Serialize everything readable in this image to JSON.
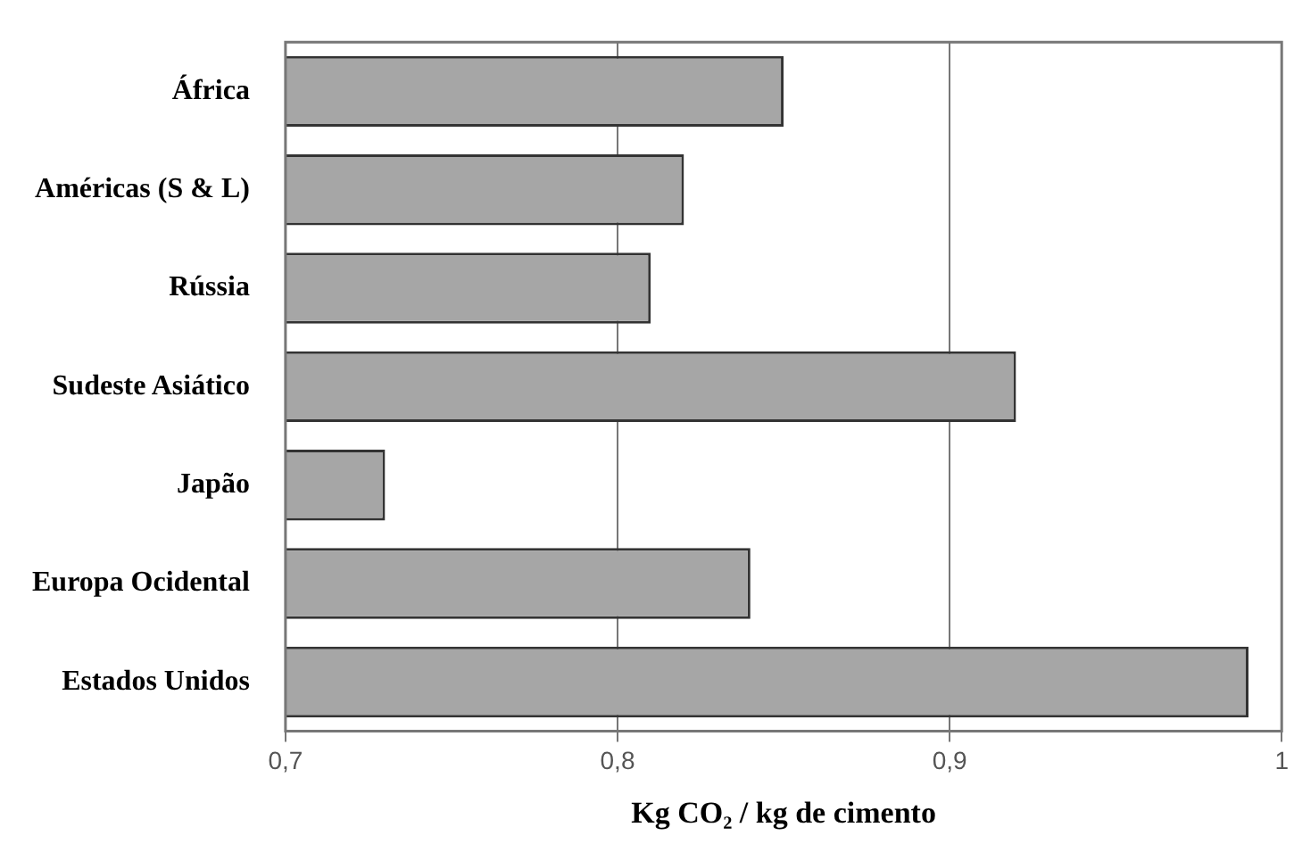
{
  "chart_data": {
    "type": "bar",
    "orientation": "horizontal",
    "xlabel": "Kg CO₂ / kg de cimento",
    "categories": [
      "África",
      "Américas (S & L)",
      "Rússia",
      "Sudeste Asiático",
      "Japão",
      "Europa Ocidental",
      "Estados Unidos"
    ],
    "values": [
      0.85,
      0.82,
      0.81,
      0.92,
      0.73,
      0.84,
      0.99
    ],
    "color": "#a6a6a6",
    "xlim": [
      0.7,
      1
    ],
    "xticks": [
      {
        "value": 0.7,
        "label": "0,7"
      },
      {
        "value": 0.8,
        "label": "0,8"
      },
      {
        "value": 0.9,
        "label": "0,9"
      },
      {
        "value": 1,
        "label": "1"
      }
    ],
    "grid": "x",
    "legend": false
  }
}
